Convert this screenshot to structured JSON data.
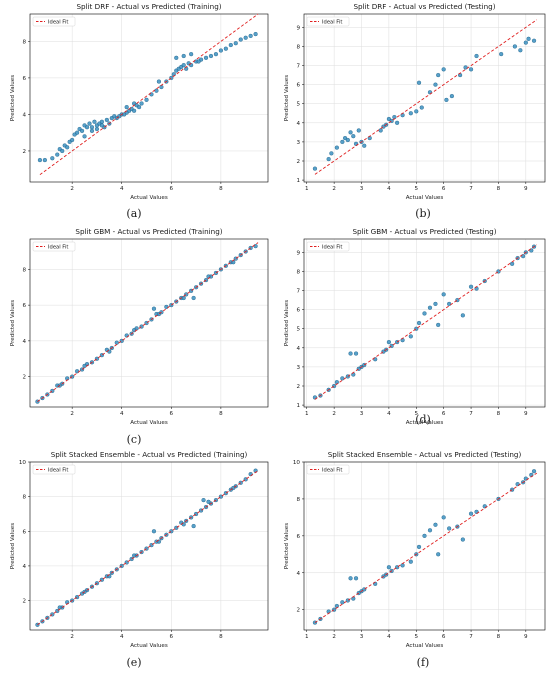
{
  "colors": {
    "point_fill": "#3a8fbf",
    "point_stroke": "#1d5f86",
    "ideal_fit_line": "#e02020",
    "grid": "#dddddd",
    "axis": "#000000"
  },
  "chart_data": [
    {
      "id": "a",
      "caption": "(a)",
      "type": "scatter",
      "title": "Split DRF - Actual vs Predicted (Training)",
      "xlabel": "Actual Values",
      "ylabel": "Predicted Values",
      "xlim": [
        0.3,
        9.9
      ],
      "ylim": [
        0.3,
        9.5
      ],
      "xticks": [
        2,
        4,
        6,
        8
      ],
      "yticks": [
        2,
        4,
        6,
        8
      ],
      "grid": true,
      "legend": {
        "label": "Ideal Fit",
        "location": "top-left"
      },
      "ideal_fit": [
        [
          0.7,
          0.7
        ],
        [
          9.5,
          9.5
        ]
      ],
      "x": [
        0.7,
        0.9,
        1.2,
        1.4,
        1.5,
        1.6,
        1.7,
        1.8,
        1.9,
        2.0,
        2.1,
        2.2,
        2.3,
        2.4,
        2.5,
        2.6,
        2.7,
        2.8,
        2.9,
        3.0,
        3.1,
        3.2,
        3.3,
        3.4,
        3.5,
        3.6,
        3.7,
        3.8,
        3.9,
        4.0,
        4.1,
        4.2,
        4.3,
        4.4,
        4.5,
        4.6,
        4.7,
        4.8,
        5.0,
        5.2,
        5.4,
        5.6,
        5.8,
        6.0,
        6.1,
        6.2,
        6.3,
        6.4,
        6.5,
        6.6,
        6.7,
        6.8,
        7.0,
        7.2,
        7.4,
        7.6,
        7.8,
        8.0,
        8.2,
        8.4,
        8.6,
        8.8,
        9.0,
        9.2,
        9.4,
        2.5,
        2.8,
        3.0,
        3.2,
        5.5,
        6.2,
        6.5,
        6.8,
        7.1,
        4.2,
        4.5
      ],
      "y": [
        1.5,
        1.5,
        1.6,
        1.8,
        2.1,
        2.0,
        2.3,
        2.2,
        2.5,
        2.6,
        2.9,
        3.0,
        3.2,
        3.1,
        3.4,
        3.3,
        3.5,
        3.3,
        3.6,
        3.4,
        3.5,
        3.6,
        3.3,
        3.7,
        3.5,
        3.8,
        3.9,
        3.8,
        3.9,
        4.0,
        4.0,
        4.1,
        4.2,
        4.3,
        4.2,
        4.5,
        4.4,
        4.6,
        4.8,
        5.1,
        5.3,
        5.5,
        5.8,
        6.0,
        6.2,
        6.4,
        6.5,
        6.6,
        6.7,
        6.5,
        6.8,
        6.7,
        6.9,
        7.0,
        7.1,
        7.2,
        7.3,
        7.5,
        7.6,
        7.8,
        7.9,
        8.1,
        8.2,
        8.3,
        8.4,
        2.8,
        3.1,
        3.2,
        3.4,
        5.8,
        7.1,
        7.2,
        7.3,
        6.9,
        4.4,
        4.6
      ]
    },
    {
      "id": "b",
      "caption": "(b)",
      "type": "scatter",
      "title": "Split DRF - Actual vs Predicted (Testing)",
      "xlabel": "Actual Values",
      "ylabel": "Predicted Values",
      "xlim": [
        0.9,
        9.7
      ],
      "ylim": [
        0.9,
        9.7
      ],
      "xticks": [
        1,
        2,
        3,
        4,
        5,
        6,
        7,
        8,
        9
      ],
      "yticks": [
        1,
        2,
        3,
        4,
        5,
        6,
        7,
        8,
        9
      ],
      "grid": true,
      "legend": {
        "label": "Ideal Fit",
        "location": "top-left"
      },
      "ideal_fit": [
        [
          1.3,
          1.3
        ],
        [
          9.4,
          9.4
        ]
      ],
      "x": [
        1.3,
        1.8,
        1.9,
        2.1,
        2.3,
        2.4,
        2.5,
        2.6,
        2.7,
        2.8,
        2.9,
        3.0,
        3.1,
        3.3,
        3.7,
        3.8,
        3.9,
        4.0,
        4.1,
        4.2,
        4.3,
        4.5,
        4.8,
        5.0,
        5.1,
        5.2,
        5.5,
        5.7,
        5.8,
        6.0,
        6.1,
        6.3,
        6.6,
        6.8,
        7.0,
        7.2,
        8.1,
        8.6,
        8.8,
        9.0,
        9.1,
        9.3
      ],
      "y": [
        1.6,
        2.1,
        2.4,
        2.7,
        3.0,
        3.2,
        3.1,
        3.5,
        3.3,
        2.9,
        3.6,
        3.0,
        2.8,
        3.2,
        3.6,
        3.8,
        3.9,
        4.2,
        4.1,
        4.3,
        4.0,
        4.4,
        4.5,
        4.6,
        6.1,
        4.8,
        5.6,
        6.0,
        6.5,
        6.8,
        5.2,
        5.4,
        6.5,
        6.9,
        6.8,
        7.5,
        7.6,
        8.0,
        7.8,
        8.2,
        8.4,
        8.3
      ]
    },
    {
      "id": "c",
      "caption": "(c)",
      "type": "scatter",
      "title": "Split GBM - Actual vs Predicted (Training)",
      "xlabel": "Actual Values",
      "ylabel": "Predicted Values",
      "xlim": [
        0.3,
        9.9
      ],
      "ylim": [
        0.3,
        9.7
      ],
      "xticks": [
        2,
        4,
        6,
        8
      ],
      "yticks": [
        2,
        4,
        6,
        8
      ],
      "grid": true,
      "legend": {
        "label": "Ideal Fit",
        "location": "top-left"
      },
      "ideal_fit": [
        [
          0.6,
          0.6
        ],
        [
          9.5,
          9.5
        ]
      ],
      "x": [
        0.6,
        0.8,
        1.0,
        1.2,
        1.4,
        1.6,
        1.8,
        2.0,
        2.2,
        2.4,
        2.6,
        2.8,
        3.0,
        3.2,
        3.4,
        3.6,
        3.8,
        4.0,
        4.2,
        4.4,
        4.6,
        4.8,
        5.0,
        5.2,
        5.4,
        5.6,
        5.8,
        6.0,
        6.2,
        6.4,
        6.6,
        6.8,
        7.0,
        7.2,
        7.4,
        7.6,
        7.8,
        8.0,
        8.2,
        8.4,
        8.6,
        8.8,
        9.0,
        9.2,
        9.4,
        1.5,
        2.5,
        3.5,
        4.5,
        5.5,
        6.5,
        7.5,
        8.5,
        5.3,
        6.9
      ],
      "y": [
        0.6,
        0.8,
        1.0,
        1.2,
        1.5,
        1.6,
        1.9,
        2.0,
        2.3,
        2.4,
        2.7,
        2.8,
        3.0,
        3.2,
        3.5,
        3.6,
        3.9,
        4.0,
        4.3,
        4.4,
        4.7,
        4.8,
        5.0,
        5.2,
        5.5,
        5.6,
        5.9,
        6.0,
        6.2,
        6.4,
        6.6,
        6.8,
        7.0,
        7.2,
        7.4,
        7.6,
        7.8,
        8.0,
        8.2,
        8.4,
        8.6,
        8.8,
        9.0,
        9.2,
        9.3,
        1.5,
        2.6,
        3.4,
        4.6,
        5.5,
        6.4,
        7.6,
        8.4,
        5.8,
        6.4
      ]
    },
    {
      "id": "d",
      "caption": "(d)",
      "type": "scatter",
      "title": "Split GBM - Actual vs Predicted (Testing)",
      "xlabel": "Actual Values",
      "ylabel": "Predicted Values",
      "xlim": [
        0.9,
        9.7
      ],
      "ylim": [
        0.9,
        9.7
      ],
      "xticks": [
        1,
        2,
        3,
        4,
        5,
        6,
        7,
        8,
        9
      ],
      "yticks": [
        1,
        2,
        3,
        4,
        5,
        6,
        7,
        8,
        9
      ],
      "grid": true,
      "legend": {
        "label": "Ideal Fit",
        "location": "top-left"
      },
      "ideal_fit": [
        [
          1.3,
          1.3
        ],
        [
          9.4,
          9.4
        ]
      ],
      "x": [
        1.3,
        1.5,
        1.8,
        2.0,
        2.1,
        2.3,
        2.5,
        2.6,
        2.7,
        2.8,
        2.9,
        3.0,
        3.1,
        3.5,
        3.8,
        3.9,
        4.0,
        4.1,
        4.3,
        4.5,
        4.8,
        5.0,
        5.1,
        5.3,
        5.5,
        5.7,
        5.8,
        6.0,
        6.2,
        6.5,
        6.7,
        7.0,
        7.2,
        7.5,
        8.0,
        8.5,
        8.7,
        8.9,
        9.0,
        9.2,
        9.3
      ],
      "y": [
        1.4,
        1.5,
        1.8,
        2.0,
        2.2,
        2.4,
        2.5,
        3.7,
        2.6,
        3.7,
        2.9,
        3.0,
        3.1,
        3.4,
        3.8,
        3.9,
        4.3,
        4.1,
        4.3,
        4.4,
        4.6,
        5.0,
        5.3,
        5.8,
        6.1,
        6.3,
        5.2,
        6.8,
        6.3,
        6.5,
        5.7,
        7.2,
        7.1,
        7.5,
        8.0,
        8.4,
        8.7,
        8.8,
        9.0,
        9.1,
        9.3
      ]
    },
    {
      "id": "e",
      "caption": "(e)",
      "type": "scatter",
      "title": "Split Stacked Ensemble - Actual vs Predicted (Training)",
      "xlabel": "Actual Values",
      "ylabel": "Predicted Values",
      "xlim": [
        0.3,
        9.9
      ],
      "ylim": [
        0.3,
        10.0
      ],
      "xticks": [
        2,
        4,
        6,
        8
      ],
      "yticks": [
        2,
        4,
        6,
        8,
        10
      ],
      "grid": true,
      "legend": {
        "label": "Ideal Fit",
        "location": "top-left"
      },
      "ideal_fit": [
        [
          0.6,
          0.6
        ],
        [
          9.5,
          9.5
        ]
      ],
      "x": [
        0.6,
        0.8,
        1.0,
        1.2,
        1.4,
        1.6,
        1.8,
        2.0,
        2.2,
        2.4,
        2.6,
        2.8,
        3.0,
        3.2,
        3.4,
        3.6,
        3.8,
        4.0,
        4.2,
        4.4,
        4.6,
        4.8,
        5.0,
        5.2,
        5.4,
        5.6,
        5.8,
        6.0,
        6.2,
        6.4,
        6.6,
        6.8,
        7.0,
        7.2,
        7.4,
        7.6,
        7.8,
        8.0,
        8.2,
        8.4,
        8.6,
        8.8,
        9.0,
        9.2,
        9.4,
        1.5,
        2.5,
        3.5,
        4.5,
        5.5,
        6.5,
        7.5,
        8.5,
        5.3,
        6.9,
        7.3
      ],
      "y": [
        0.6,
        0.8,
        1.0,
        1.2,
        1.4,
        1.6,
        1.9,
        2.0,
        2.2,
        2.4,
        2.6,
        2.8,
        3.0,
        3.2,
        3.4,
        3.6,
        3.8,
        4.0,
        4.2,
        4.4,
        4.6,
        4.8,
        5.0,
        5.2,
        5.4,
        5.6,
        5.8,
        6.0,
        6.2,
        6.5,
        6.6,
        6.8,
        7.0,
        7.2,
        7.4,
        7.6,
        7.8,
        8.0,
        8.2,
        8.4,
        8.6,
        8.8,
        9.0,
        9.3,
        9.5,
        1.6,
        2.5,
        3.4,
        4.6,
        5.4,
        6.4,
        7.7,
        8.5,
        6.0,
        6.3,
        7.8
      ]
    },
    {
      "id": "f",
      "caption": "(f)",
      "type": "scatter",
      "title": "Split Stacked Ensemble - Actual vs Predicted (Testing)",
      "xlabel": "Actual Values",
      "ylabel": "Predicted Values",
      "xlim": [
        0.9,
        9.7
      ],
      "ylim": [
        0.9,
        10.0
      ],
      "xticks": [
        1,
        2,
        3,
        4,
        5,
        6,
        7,
        8,
        9
      ],
      "yticks": [
        2,
        4,
        6,
        8,
        10
      ],
      "grid": true,
      "legend": {
        "label": "Ideal Fit",
        "location": "top-left"
      },
      "ideal_fit": [
        [
          1.3,
          1.3
        ],
        [
          9.4,
          9.4
        ]
      ],
      "x": [
        1.3,
        1.5,
        1.8,
        2.0,
        2.1,
        2.3,
        2.5,
        2.6,
        2.7,
        2.8,
        2.9,
        3.0,
        3.1,
        3.5,
        3.8,
        3.9,
        4.0,
        4.1,
        4.3,
        4.5,
        4.8,
        5.0,
        5.1,
        5.3,
        5.5,
        5.7,
        5.8,
        6.0,
        6.2,
        6.5,
        6.7,
        7.0,
        7.2,
        7.5,
        8.0,
        8.5,
        8.7,
        8.9,
        9.0,
        9.2,
        9.3
      ],
      "y": [
        1.3,
        1.5,
        1.9,
        2.0,
        2.2,
        2.4,
        2.5,
        3.7,
        2.6,
        3.7,
        2.9,
        3.0,
        3.1,
        3.4,
        3.8,
        3.9,
        4.3,
        4.1,
        4.3,
        4.4,
        4.6,
        5.0,
        5.4,
        6.0,
        6.3,
        6.6,
        5.0,
        7.0,
        6.4,
        6.5,
        5.8,
        7.2,
        7.3,
        7.6,
        8.0,
        8.5,
        8.8,
        8.9,
        9.1,
        9.3,
        9.5
      ]
    }
  ]
}
